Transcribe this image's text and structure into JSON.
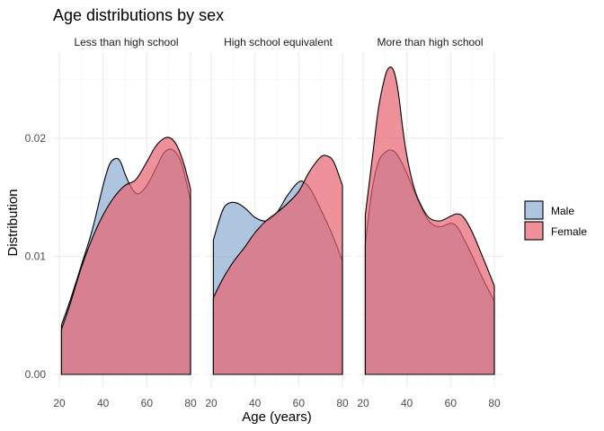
{
  "chart_data": {
    "type": "area",
    "title": "Age distributions by sex",
    "xlabel": "Age (years)",
    "ylabel": "Distribution",
    "xlim": [
      20,
      80
    ],
    "ylim": [
      0,
      0.026
    ],
    "x_ticks": [
      20,
      40,
      60,
      80
    ],
    "y_ticks": [
      0.0,
      0.01,
      0.02
    ],
    "y_tick_labels": [
      "0.00",
      "0.01",
      "0.02"
    ],
    "grid": true,
    "legend_position": "right",
    "colors": {
      "Male": "#8aadd2",
      "Female": "#e8636f",
      "outline": "#000000"
    },
    "legend": [
      {
        "name": "Male",
        "color": "#8aadd2"
      },
      {
        "name": "Female",
        "color": "#e8636f"
      }
    ],
    "panels": [
      {
        "label": "Less than high school",
        "series": [
          {
            "name": "Male",
            "x": [
              21,
              25,
              30,
              35,
              40,
              43,
              46,
              48,
              50,
              53,
              56,
              60,
              64,
              68,
              72,
              76,
              80
            ],
            "y": [
              0.0042,
              0.0063,
              0.0092,
              0.0122,
              0.016,
              0.0178,
              0.0183,
              0.018,
              0.017,
              0.0158,
              0.0153,
              0.016,
              0.0174,
              0.0188,
              0.019,
              0.0178,
              0.0147
            ]
          },
          {
            "name": "Female",
            "x": [
              21,
              25,
              30,
              35,
              40,
              45,
              50,
              55,
              60,
              64,
              68,
              71,
              74,
              77,
              80
            ],
            "y": [
              0.0038,
              0.006,
              0.009,
              0.0115,
              0.0135,
              0.015,
              0.016,
              0.0165,
              0.018,
              0.0193,
              0.02,
              0.02,
              0.0193,
              0.0178,
              0.0157
            ]
          }
        ]
      },
      {
        "label": "High school equivalent",
        "series": [
          {
            "name": "Male",
            "x": [
              21,
              25,
              28,
              32,
              36,
              40,
              45,
              50,
              55,
              60,
              63,
              66,
              70,
              75,
              80
            ],
            "y": [
              0.0114,
              0.0138,
              0.0145,
              0.0145,
              0.014,
              0.0133,
              0.013,
              0.0137,
              0.0152,
              0.0163,
              0.0162,
              0.0155,
              0.014,
              0.012,
              0.0096
            ]
          },
          {
            "name": "Female",
            "x": [
              21,
              25,
              30,
              35,
              40,
              45,
              50,
              55,
              60,
              65,
              70,
              73,
              76,
              80
            ],
            "y": [
              0.0065,
              0.008,
              0.0095,
              0.0107,
              0.012,
              0.013,
              0.0137,
              0.0145,
              0.0155,
              0.0172,
              0.0184,
              0.0185,
              0.018,
              0.016
            ]
          }
        ]
      },
      {
        "label": "More than high school",
        "series": [
          {
            "name": "Male",
            "x": [
              21,
              24,
              27,
              30,
              33,
              36,
              40,
              45,
              50,
              55,
              60,
              63,
              66,
              70,
              75,
              80
            ],
            "y": [
              0.011,
              0.0155,
              0.018,
              0.0188,
              0.019,
              0.0185,
              0.017,
              0.0148,
              0.013,
              0.0125,
              0.0128,
              0.0125,
              0.0115,
              0.01,
              0.008,
              0.0062
            ]
          },
          {
            "name": "Female",
            "x": [
              21,
              24,
              27,
              30,
              32,
              34,
              36,
              38,
              40,
              43,
              46,
              50,
              55,
              60,
              63,
              66,
              70,
              75,
              80
            ],
            "y": [
              0.0135,
              0.018,
              0.0225,
              0.0252,
              0.026,
              0.0257,
              0.024,
              0.021,
              0.0185,
              0.016,
              0.0145,
              0.0133,
              0.013,
              0.0134,
              0.0136,
              0.0133,
              0.012,
              0.0098,
              0.0075
            ]
          }
        ]
      }
    ]
  }
}
